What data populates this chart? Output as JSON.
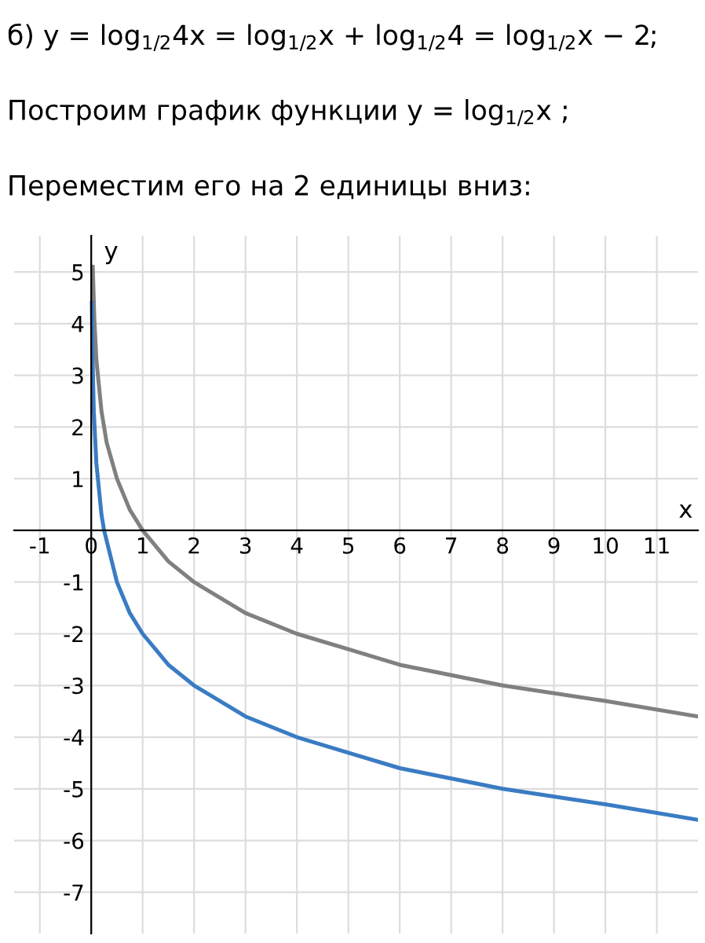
{
  "chart_data": {
    "type": "line",
    "title": "б) y = log$_{1/2}$4x = log$_{1/2}$x + log$_{1/2}$4 = log$_{1/2}$x − 2;",
    "subtitle": "Построим график функции y = log$_{1/2}$x ;",
    "annotations": [
      "Переместим его на 2 единицы вниз:"
    ],
    "xlabel": "x",
    "ylabel": "y",
    "xlim": [
      -1.5,
      11.8
    ],
    "ylim": [
      -7.8,
      5.7
    ],
    "xticks": [
      -1,
      0,
      1,
      2,
      3,
      4,
      5,
      6,
      7,
      8,
      9,
      10,
      11
    ],
    "yticks": [
      -7,
      -6,
      -5,
      -4,
      -3,
      -2,
      -1,
      1,
      2,
      3,
      4,
      5
    ],
    "grid": true,
    "series": [
      {
        "color": "#808080",
        "x": [
          0.03,
          0.06,
          0.1,
          0.2,
          0.3,
          0.5,
          0.75,
          1,
          1.5,
          2,
          3,
          4,
          5,
          6,
          8,
          10,
          11.8
        ],
        "values": [
          5.1,
          4.1,
          3.3,
          2.3,
          1.7,
          1,
          0.4,
          0,
          -0.6,
          -1,
          -1.6,
          -2,
          -2.3,
          -2.6,
          -3,
          -3.3,
          -3.6
        ]
      },
      {
        "color": "#3a7cc3",
        "x": [
          0.012,
          0.02,
          0.05,
          0.1,
          0.2,
          0.25,
          0.5,
          0.75,
          1,
          1.5,
          2,
          3,
          4,
          5,
          6,
          8,
          10,
          11.8
        ],
        "values": [
          4.4,
          3.6,
          2.3,
          1.3,
          0.3,
          0,
          -1,
          -1.6,
          -2,
          -2.6,
          -3,
          -3.6,
          -4,
          -4.3,
          -4.6,
          -5,
          -5.3,
          -5.6
        ]
      }
    ]
  }
}
